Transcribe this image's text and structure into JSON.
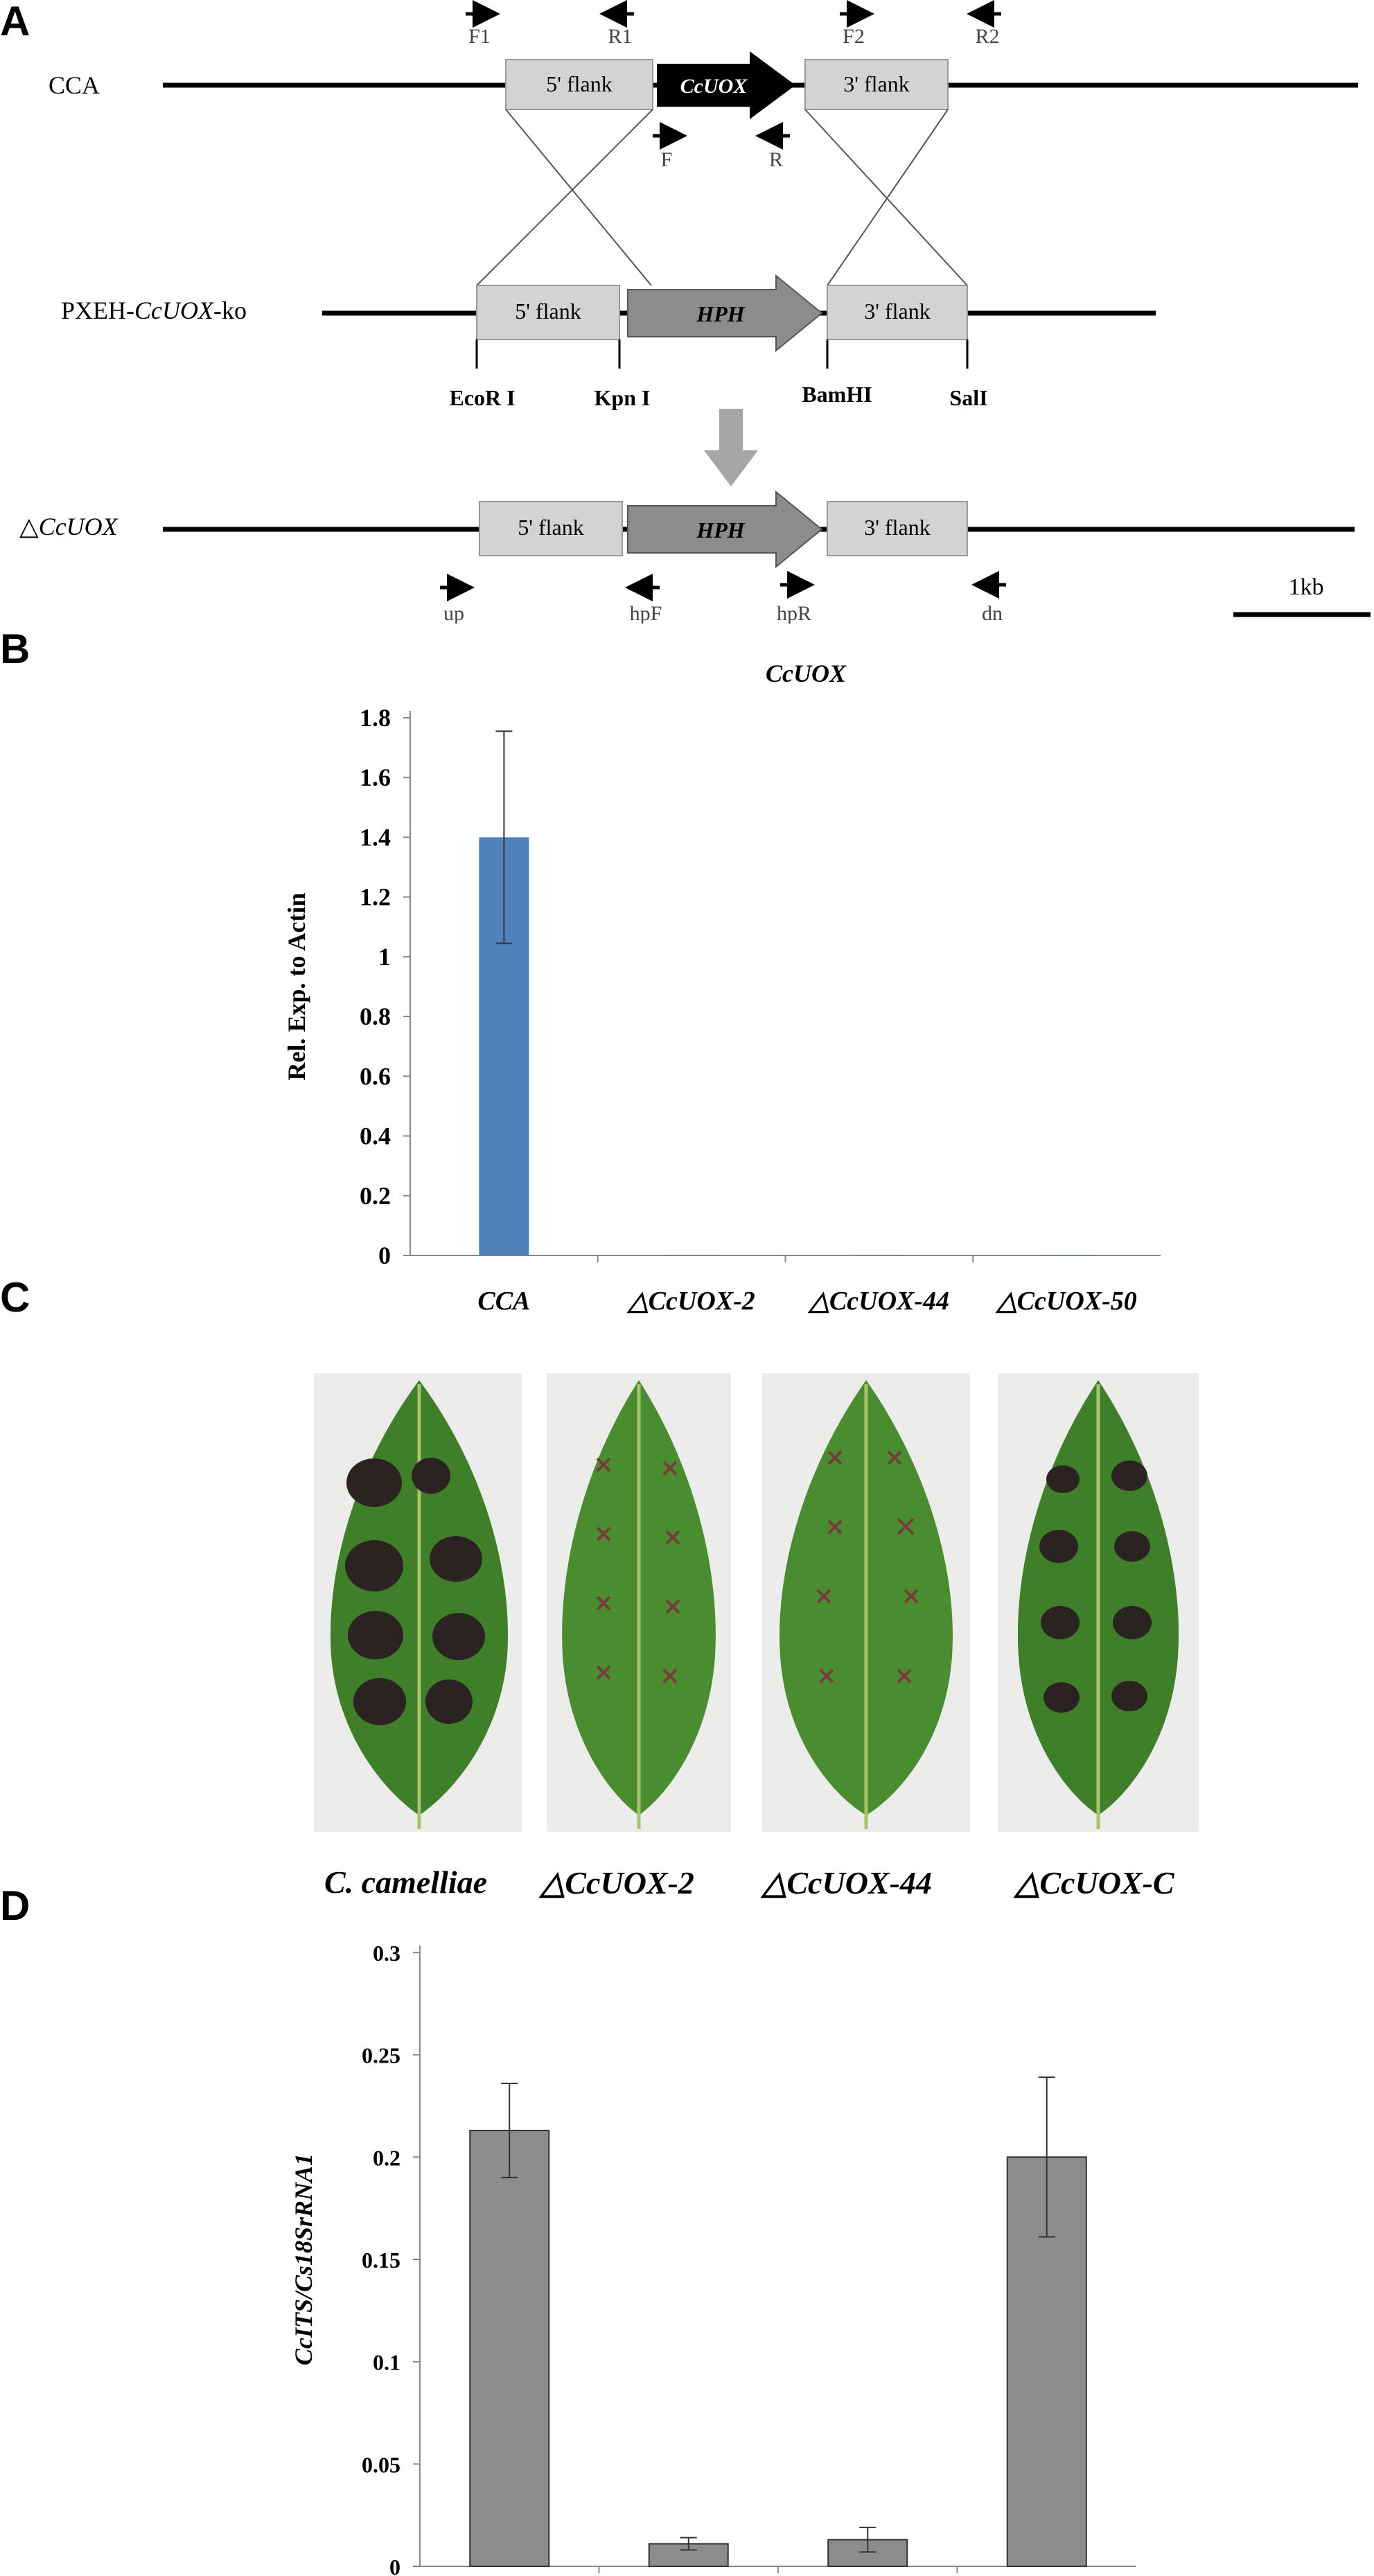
{
  "panel_letters": [
    "A",
    "B",
    "C",
    "D"
  ],
  "construct": {
    "rows": [
      {
        "label_prefix": "CCA",
        "label_gene": "",
        "label_suffix": ""
      },
      {
        "label_prefix": "PXEH-",
        "label_gene": "CcUOX",
        "label_suffix": "-ko"
      },
      {
        "label_prefix": "△",
        "label_gene": "CcUOX",
        "label_suffix": ""
      }
    ],
    "five_flank": "5' flank",
    "three_flank": "3' flank",
    "gene": "CcUOX",
    "marker": "HPH",
    "sites": [
      "EcoR I",
      "Kpn I",
      "BamHI",
      "SalI"
    ],
    "top_primers": [
      "F1",
      "R1",
      "F2",
      "R2"
    ],
    "inner_primers": [
      "F",
      "R"
    ],
    "bottom_primers": [
      "up",
      "hpF",
      "hpR",
      "dn"
    ],
    "scale_label": "1kb",
    "colors": {
      "flank": "#d3d3d3",
      "gene": "#000000",
      "marker": "#8c8c8c",
      "line": "#000000"
    }
  },
  "chart_data": [
    {
      "type": "bar",
      "title": "CcUOX",
      "ylabel": "Rel. Exp. to Actin",
      "xlabel": "",
      "categories": [
        "CCA",
        "△CcUOX-2",
        "△CcUOX-44",
        "△CcUOX-50"
      ],
      "values": [
        1.4,
        0.0,
        0.0,
        0.002
      ],
      "errors": [
        0.355,
        0,
        0,
        0
      ],
      "ylim": [
        0,
        1.8
      ],
      "yticks": [
        "0",
        "0.2",
        "0.4",
        "0.6",
        "0.8",
        "1",
        "1.2",
        "1.4",
        "1.6",
        "1.8"
      ],
      "bar_color": "#4f81bd",
      "grid": false
    },
    {
      "type": "bar",
      "title": "",
      "ylabel": "CcITS/Cs18SrRNA1",
      "xlabel": "",
      "categories": [
        "C. camelliae",
        "△CcUOX-2",
        "△CcUOX-44",
        "△CcUOX-C"
      ],
      "values": [
        0.213,
        0.011,
        0.013,
        0.2
      ],
      "errors": [
        0.023,
        0.003,
        0.006,
        0.039
      ],
      "ylim": [
        0,
        0.3
      ],
      "yticks": [
        "0",
        "0.05",
        "0.1",
        "0.15",
        "0.2",
        "0.25",
        "0.3"
      ],
      "bar_color": "#8c8c8c",
      "grid": false
    }
  ],
  "leaves": {
    "captions": [
      "C. camelliae",
      "△CcUOX-2",
      "△CcUOX-44",
      "△CcUOX-C"
    ],
    "colors": {
      "leaf": "#3f7f2a",
      "lesion": "#2b2322",
      "mark": "#7a3a3a"
    }
  }
}
